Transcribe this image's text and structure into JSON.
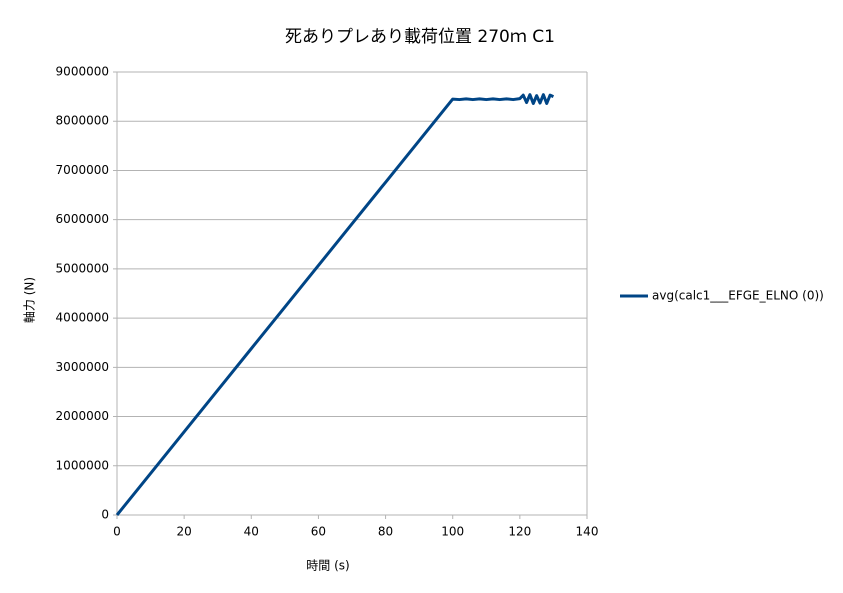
{
  "chart_data": {
    "type": "line",
    "title": "死ありプレあり載荷位置 270ｍ C1",
    "x_label": "時間 (s)",
    "y_label": "軸力 (N)",
    "x": [
      0,
      10,
      20,
      30,
      40,
      50,
      60,
      70,
      80,
      90,
      100,
      102,
      104,
      106,
      108,
      110,
      112,
      114,
      116,
      118,
      120,
      121,
      122,
      123,
      124,
      125,
      126,
      127,
      128,
      129,
      130
    ],
    "series": [
      {
        "name": "avg(calc1___EFGE_ELNO (0))",
        "color": "#004586",
        "values": [
          0,
          845000,
          1690000,
          2535000,
          3380000,
          4225000,
          5070000,
          5915000,
          6760000,
          7605000,
          8450000,
          8440000,
          8455000,
          8440000,
          8455000,
          8440000,
          8455000,
          8440000,
          8455000,
          8440000,
          8460000,
          8530000,
          8380000,
          8540000,
          8360000,
          8520000,
          8370000,
          8540000,
          8360000,
          8530000,
          8500000
        ]
      }
    ],
    "xlim": [
      0,
      140
    ],
    "xticks": [
      0,
      20,
      40,
      60,
      80,
      100,
      120,
      140
    ],
    "ylim": [
      0,
      9000000
    ],
    "yticks": [
      0,
      1000000,
      2000000,
      3000000,
      4000000,
      5000000,
      6000000,
      7000000,
      8000000,
      9000000
    ],
    "grid": true,
    "legend": "right"
  }
}
